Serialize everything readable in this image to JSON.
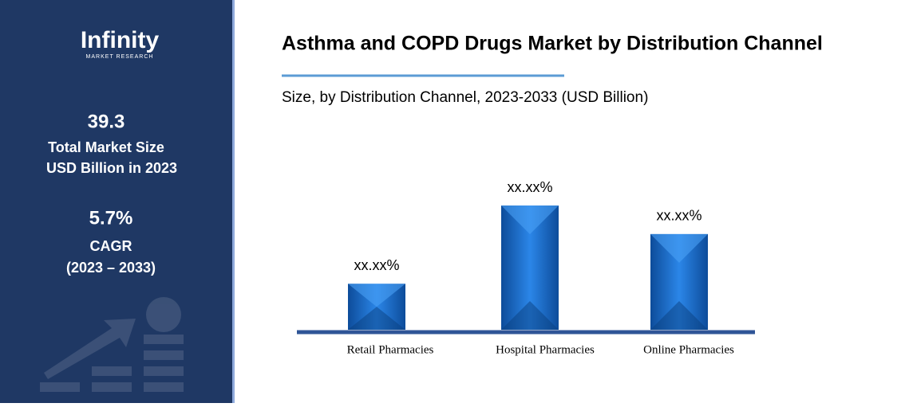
{
  "sidebar": {
    "brand": "Infinity",
    "brand_sub": "MARKET RESEARCH",
    "market_size": "39.3",
    "market_size_label_1": "Total Market Size",
    "market_size_label_2": "USD Billion in 2023",
    "cagr": "5.7%",
    "cagr_label": "CAGR",
    "cagr_period": "(2023 – 2033)"
  },
  "chart_data": {
    "type": "bar",
    "title": "Asthma and COPD Drugs Market by Distribution Channel",
    "subtitle": "Size, by Distribution Channel, 2023-2033 (USD Billion)",
    "categories": [
      "Retail Pharmacies",
      "Hospital Pharmacies",
      "Online Pharmacies"
    ],
    "values": [
      37,
      100,
      77
    ],
    "value_labels": [
      "xx.xx%",
      "xx.xx%",
      "xx.xx%"
    ],
    "color": "#1f6fd1"
  }
}
